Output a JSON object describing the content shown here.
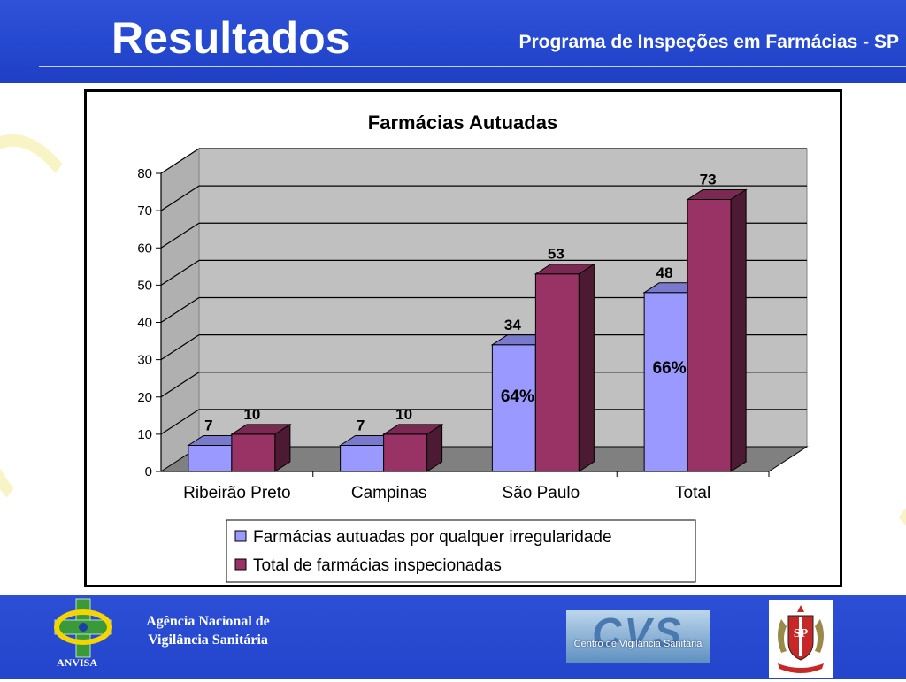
{
  "slide": {
    "title": "Resultados",
    "subtitle": "Programa de Inspeções em Farmácias - SP"
  },
  "footer": {
    "agency_line1": "Agência Nacional de",
    "agency_line2": "Vigilância Sanitária",
    "agency_abbr": "ANVISA",
    "cvs_letters": "CVS",
    "cvs_text": "Centro de Vigilância Sanitária",
    "sp_letters": "SP"
  },
  "chart_data": {
    "type": "bar",
    "title": "Farmácias Autuadas",
    "categories": [
      "Ribeirão Preto",
      "Campinas",
      "São Paulo",
      "Total"
    ],
    "series": [
      {
        "name": "Farmácias autuadas por qualquer irregularidade",
        "values": [
          7,
          7,
          34,
          48
        ],
        "color": "#9999ff",
        "value_labels": [
          "7",
          "7",
          "34",
          "48"
        ],
        "inner_labels": [
          "",
          "",
          "64%",
          "66%"
        ]
      },
      {
        "name": "Total de farmácias inspecionadas",
        "values": [
          10,
          10,
          53,
          73
        ],
        "color": "#993366",
        "value_labels": [
          "10",
          "10",
          "53",
          "73"
        ]
      }
    ],
    "ylim": [
      0,
      80
    ],
    "yticks": [
      0,
      10,
      20,
      30,
      40,
      50,
      60,
      70,
      80
    ],
    "grid": true,
    "three_d": true,
    "legend_position": "bottom",
    "colors": {
      "wall": "#c0c0c0",
      "floor": "#808080",
      "grid": "#000000"
    }
  }
}
